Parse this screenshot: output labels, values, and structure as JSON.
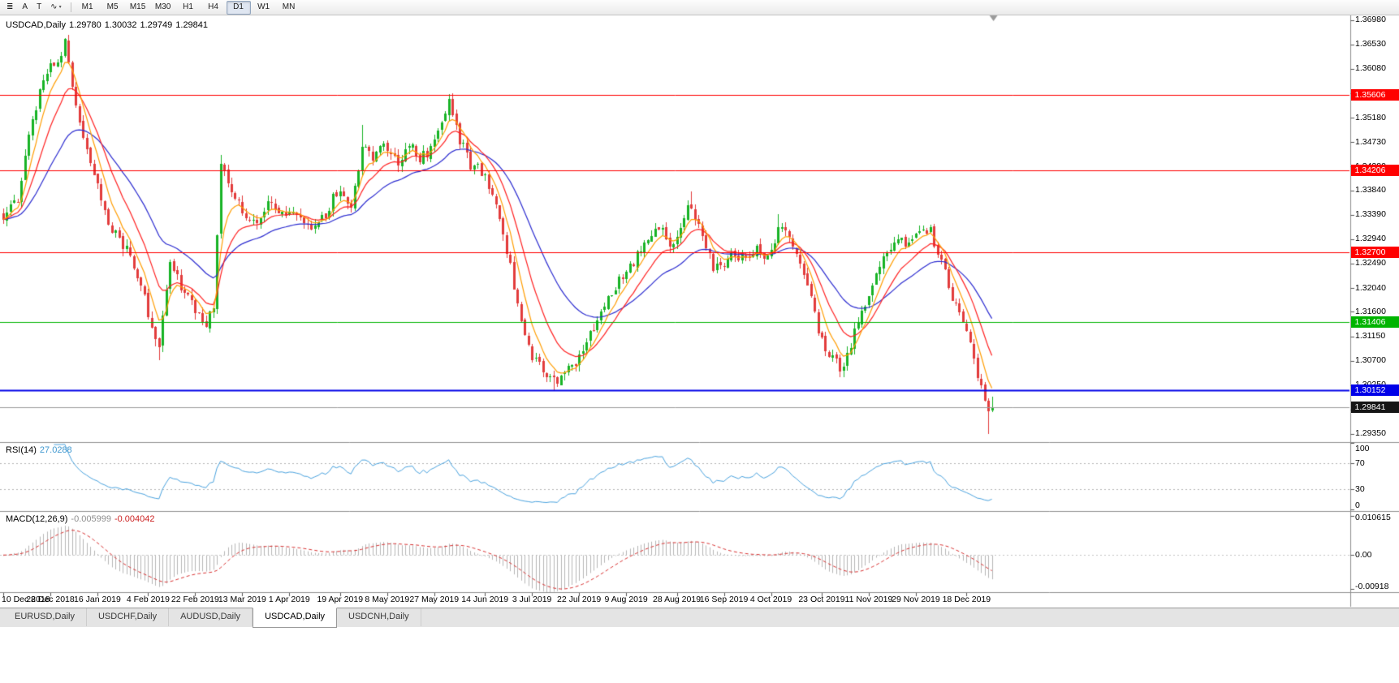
{
  "toolbar": {
    "icons": [
      {
        "name": "charts-menu-icon",
        "glyph": "≣"
      },
      {
        "name": "cursor-tool-icon",
        "glyph": "A"
      },
      {
        "name": "text-tool-icon",
        "glyph": "T"
      },
      {
        "name": "polyline-tool-icon",
        "glyph": "∿",
        "caret": true
      }
    ],
    "timeframes": [
      {
        "label": "M1"
      },
      {
        "label": "M5"
      },
      {
        "label": "M15"
      },
      {
        "label": "M30"
      },
      {
        "label": "H1"
      },
      {
        "label": "H4"
      },
      {
        "label": "D1",
        "active": true
      },
      {
        "label": "W1"
      },
      {
        "label": "MN"
      }
    ]
  },
  "chart": {
    "title": "USDCAD,Daily",
    "ohlc": {
      "open": "1.29780",
      "high": "1.30032",
      "low": "1.29749",
      "close": "1.29841"
    },
    "price_axis_ticks": [
      "1.36980",
      "1.36530",
      "1.36080",
      "1.35630",
      "1.35180",
      "1.34730",
      "1.34280",
      "1.33840",
      "1.33390",
      "1.32940",
      "1.32490",
      "1.32040",
      "1.31600",
      "1.31150",
      "1.30700",
      "1.30250",
      "1.29800",
      "1.29350"
    ],
    "dates": [
      "10 Dec 2018",
      "28 Dec 2018",
      "16 Jan 2019",
      "4 Feb 2019",
      "22 Feb 2019",
      "13 Mar 2019",
      "1 Apr 2019",
      "19 Apr 2019",
      "8 May 2019",
      "27 May 2019",
      "14 Jun 2019",
      "3 Jul 2019",
      "22 Jul 2019",
      "9 Aug 2019",
      "28 Aug 2019",
      "16 Sep 2019",
      "4 Oct 2019",
      "23 Oct 2019",
      "11 Nov 2019",
      "29 Nov 2019",
      "18 Dec 2019"
    ]
  },
  "rsi": {
    "name": "RSI(14)",
    "value": "27.0288",
    "axis": [
      "100",
      "70",
      "30",
      "0"
    ]
  },
  "macd": {
    "name": "MACD(12,26,9)",
    "value_main": "-0.005999",
    "value_signal": "-0.004042",
    "axis": [
      "0.010615",
      "0.00",
      "-0.00918"
    ]
  },
  "tabs": [
    {
      "label": "EURUSD,Daily"
    },
    {
      "label": "USDCHF,Daily"
    },
    {
      "label": "AUDUSD,Daily"
    },
    {
      "label": "USDCAD,Daily",
      "active": true
    },
    {
      "label": "USDCNH,Daily"
    }
  ],
  "chart_data": {
    "type": "candlestick",
    "symbol": "USDCAD",
    "timeframe": "Daily",
    "current_bar": {
      "open": 1.2978,
      "high": 1.30032,
      "low": 1.29749,
      "close": 1.29841
    },
    "y_axis_range": [
      1.292,
      1.3702
    ],
    "bars_total": 274,
    "seed": 1913,
    "close_path_anchors": [
      [
        0,
        1.334
      ],
      [
        4,
        1.3372
      ],
      [
        8,
        1.352
      ],
      [
        12,
        1.3601
      ],
      [
        15,
        1.3628
      ],
      [
        17,
        1.3652
      ],
      [
        19,
        1.3568
      ],
      [
        22,
        1.3478
      ],
      [
        26,
        1.3392
      ],
      [
        30,
        1.3312
      ],
      [
        34,
        1.3272
      ],
      [
        38,
        1.3212
      ],
      [
        41,
        1.3132
      ],
      [
        43,
        1.3105
      ],
      [
        46,
        1.3248
      ],
      [
        49,
        1.3208
      ],
      [
        53,
        1.3162
      ],
      [
        56,
        1.313
      ],
      [
        58,
        1.3172
      ],
      [
        60,
        1.3428
      ],
      [
        63,
        1.3388
      ],
      [
        66,
        1.3342
      ],
      [
        70,
        1.3322
      ],
      [
        74,
        1.3368
      ],
      [
        77,
        1.3342
      ],
      [
        80,
        1.3352
      ],
      [
        84,
        1.3312
      ],
      [
        88,
        1.333
      ],
      [
        91,
        1.3368
      ],
      [
        93,
        1.338
      ],
      [
        96,
        1.3342
      ],
      [
        99,
        1.3466
      ],
      [
        102,
        1.3448
      ],
      [
        106,
        1.3464
      ],
      [
        109,
        1.343
      ],
      [
        112,
        1.3468
      ],
      [
        115,
        1.344
      ],
      [
        118,
        1.3462
      ],
      [
        121,
        1.3518
      ],
      [
        123,
        1.3543
      ],
      [
        126,
        1.3478
      ],
      [
        129,
        1.3432
      ],
      [
        132,
        1.342
      ],
      [
        135,
        1.3372
      ],
      [
        138,
        1.33
      ],
      [
        141,
        1.3212
      ],
      [
        144,
        1.3122
      ],
      [
        146,
        1.3076
      ],
      [
        149,
        1.3056
      ],
      [
        152,
        1.3032
      ],
      [
        155,
        1.3046
      ],
      [
        158,
        1.307
      ],
      [
        161,
        1.3108
      ],
      [
        164,
        1.3148
      ],
      [
        167,
        1.3188
      ],
      [
        170,
        1.3218
      ],
      [
        172,
        1.323
      ],
      [
        175,
        1.3264
      ],
      [
        178,
        1.3294
      ],
      [
        181,
        1.3318
      ],
      [
        184,
        1.3282
      ],
      [
        186,
        1.3298
      ],
      [
        189,
        1.3348
      ],
      [
        191,
        1.3338
      ],
      [
        193,
        1.3292
      ],
      [
        196,
        1.3242
      ],
      [
        199,
        1.3246
      ],
      [
        202,
        1.327
      ],
      [
        205,
        1.3252
      ],
      [
        208,
        1.3286
      ],
      [
        211,
        1.3256
      ],
      [
        214,
        1.3314
      ],
      [
        217,
        1.3294
      ],
      [
        220,
        1.3246
      ],
      [
        223,
        1.318
      ],
      [
        226,
        1.3106
      ],
      [
        229,
        1.3072
      ],
      [
        232,
        1.3052
      ],
      [
        235,
        1.3124
      ],
      [
        238,
        1.3168
      ],
      [
        241,
        1.3238
      ],
      [
        244,
        1.3268
      ],
      [
        247,
        1.3294
      ],
      [
        250,
        1.3286
      ],
      [
        253,
        1.3298
      ],
      [
        256,
        1.3308
      ],
      [
        258,
        1.3272
      ],
      [
        260,
        1.3232
      ],
      [
        262,
        1.3176
      ],
      [
        264,
        1.316
      ],
      [
        266,
        1.3122
      ],
      [
        268,
        1.3076
      ],
      [
        270,
        1.302
      ],
      [
        271,
        1.2996
      ],
      [
        272,
        1.2962
      ],
      [
        273,
        1.29841
      ]
    ],
    "pins": [
      {
        "i": 17,
        "high": 1.3665
      },
      {
        "i": 43,
        "low": 1.307
      },
      {
        "i": 60,
        "high": 1.345
      },
      {
        "i": 99,
        "high": 1.3505
      },
      {
        "i": 123,
        "high": 1.3561
      },
      {
        "i": 152,
        "low": 1.30145
      },
      {
        "i": 190,
        "high": 1.3382
      },
      {
        "i": 214,
        "high": 1.334
      },
      {
        "i": 232,
        "low": 1.304
      }
    ],
    "force_bars": {
      "272": [
        1.2997,
        1.30012,
        1.29355,
        1.2978
      ],
      "273": [
        1.2978,
        1.30032,
        1.29749,
        1.29841
      ]
    },
    "date_bar_indices": [
      0,
      13,
      26,
      40,
      53,
      66,
      79,
      93,
      106,
      119,
      133,
      146,
      159,
      172,
      186,
      199,
      212,
      226,
      239,
      252,
      266
    ],
    "horizontal_lines": [
      {
        "price": 1.35606,
        "label": "1.35606",
        "color": "#ff0000",
        "width": 1
      },
      {
        "price": 1.34206,
        "label": "1.34206",
        "color": "#ff0000",
        "width": 1
      },
      {
        "price": 1.327,
        "label": "1.32700",
        "color": "#ff0000",
        "width": 1
      },
      {
        "price": 1.31406,
        "label": "1.31406",
        "color": "#00b400",
        "width": 1
      },
      {
        "price": 1.30152,
        "label": "1.30152",
        "color": "#0000e8",
        "width": 2
      }
    ],
    "bid_line": {
      "price": 1.29841,
      "label": "1.29841",
      "color": "#9c9c9c",
      "label_bg": "#151515"
    },
    "moving_averages": [
      {
        "period": 30,
        "method": "ema",
        "color": "#2b2bd0",
        "name": "ma-slow-blue"
      },
      {
        "period": 13,
        "method": "ema",
        "color": "#ff2020",
        "name": "ma-mid-red"
      },
      {
        "period": 6,
        "method": "ema",
        "color": "#ff9d00",
        "name": "ma-fast-orange"
      }
    ],
    "indicators": {
      "rsi": {
        "period": 14,
        "current": 27.0288,
        "color": "#4aa3df",
        "levels": [
          70,
          30
        ]
      },
      "macd": {
        "fast": 12,
        "slow": 26,
        "signal": 9,
        "current_main": -0.005999,
        "current_signal": -0.004042,
        "hist_color": "#b6b6b6",
        "signal_color": "#d93030",
        "scale_max": 0.010615,
        "scale_min": -0.00918
      }
    },
    "candle_colors": {
      "up": "#17b325",
      "down": "#e23b3b"
    }
  }
}
